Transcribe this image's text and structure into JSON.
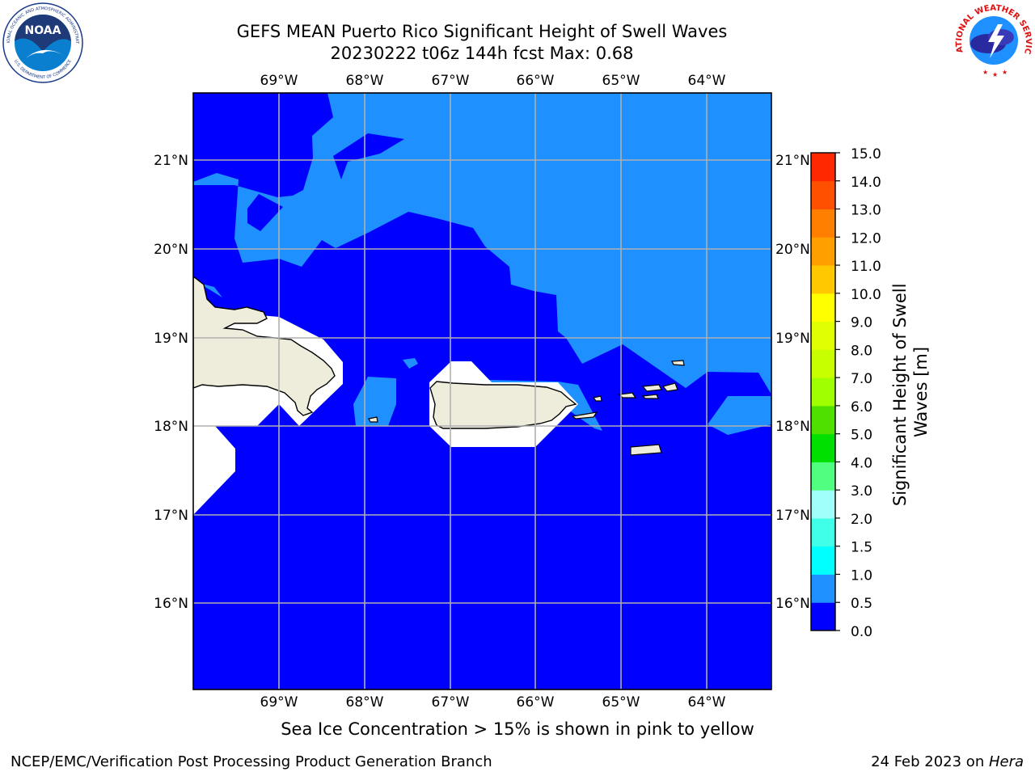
{
  "title": {
    "line1": "GEFS MEAN Puerto Rico Significant Height of Swell Waves",
    "line2": "20230222 t06z 144h fcst   Max: 0.68"
  },
  "map": {
    "lon_labels": [
      "69°W",
      "68°W",
      "67°W",
      "66°W",
      "65°W",
      "64°W"
    ],
    "lat_labels": [
      "21°N",
      "20°N",
      "19°N",
      "18°N",
      "17°N",
      "16°N"
    ],
    "colors": {
      "level_0_0.5": "#0000ff",
      "level_0.5_1.0": "#1e90ff",
      "land": "#eeeddc",
      "masked": "#ffffff",
      "grid": "#b0b0b0"
    }
  },
  "colorbar": {
    "label_line1": "Significant Height of Swell",
    "label_line2": "Waves [m]",
    "ticks": [
      "0.0",
      "0.5",
      "1.0",
      "1.5",
      "2.0",
      "3.0",
      "4.0",
      "5.0",
      "6.0",
      "7.0",
      "8.0",
      "9.0",
      "10.0",
      "11.0",
      "12.0",
      "13.0",
      "14.0",
      "15.0"
    ],
    "colors": [
      "#0000ff",
      "#1e90ff",
      "#00ffff",
      "#40ffe8",
      "#a0fff8",
      "#50ff80",
      "#00e000",
      "#50e000",
      "#a0ff00",
      "#c8ff00",
      "#e0ff00",
      "#ffff00",
      "#ffc800",
      "#ffa000",
      "#ff8000",
      "#ff5000",
      "#ff2800",
      "#ff0000"
    ]
  },
  "notes": {
    "ice": "Sea Ice Concentration > 15% is shown in pink to yellow",
    "footer_left": "NCEP/EMC/Verification Post Processing Product Generation Branch",
    "footer_date": "24 Feb 2023 on ",
    "footer_host": "Hera"
  },
  "logos": {
    "noaa_text": "NOAA",
    "noaa_ring_top": "NATIONAL OCEANIC AND ATMOSPHERIC ADMINISTRATION",
    "noaa_ring_bottom": "U.S. DEPARTMENT OF COMMERCE",
    "nws_ring": "NATIONAL WEATHER SERVICE"
  }
}
